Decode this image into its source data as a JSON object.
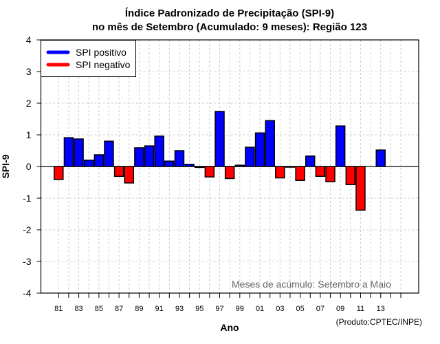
{
  "chart_data": {
    "type": "bar",
    "title": [
      "Índice Padronizado de Precipitação (SPI-9)",
      "no mês de Setembro (Acumulado: 9 meses): Região 123"
    ],
    "xlabel": "Ano",
    "ylabel": "SPI-9",
    "ylim": [
      -4,
      4
    ],
    "yticks": [
      "4",
      "3",
      "2",
      "1",
      "0",
      "-1",
      "-2",
      "-3",
      "-4"
    ],
    "xlim": [
      1981,
      2015
    ],
    "xtick_labels": [
      "81",
      "83",
      "85",
      "87",
      "89",
      "91",
      "93",
      "95",
      "97",
      "99",
      "01",
      "03",
      "05",
      "07",
      "09",
      "11",
      "13"
    ],
    "grid": true,
    "legend": {
      "position": "top-left",
      "entries": [
        {
          "label": "SPI positivo",
          "color": "#0000ff"
        },
        {
          "label": "SPI negativo",
          "color": "#ff0000"
        }
      ]
    },
    "colors": {
      "positive": "#0000ff",
      "negative": "#ff0000",
      "grid": "#cccccc"
    },
    "years": [
      1981,
      1982,
      1983,
      1984,
      1985,
      1986,
      1987,
      1988,
      1989,
      1990,
      1991,
      1992,
      1993,
      1994,
      1995,
      1996,
      1997,
      1998,
      1999,
      2000,
      2001,
      2002,
      2003,
      2004,
      2005,
      2006,
      2007,
      2008,
      2009,
      2010,
      2011,
      2012,
      2013
    ],
    "values": [
      -0.41,
      0.91,
      0.87,
      0.2,
      0.37,
      0.8,
      -0.31,
      -0.52,
      0.59,
      0.65,
      0.96,
      0.17,
      0.5,
      0.07,
      -0.03,
      -0.33,
      1.74,
      -0.38,
      0.04,
      0.61,
      1.06,
      1.45,
      -0.36,
      -0.02,
      -0.44,
      0.33,
      -0.31,
      -0.48,
      1.28,
      -0.57,
      -1.38,
      null,
      0.52
    ],
    "annotation": "Meses de acúmulo: Setembro a Maio",
    "credit": "(Produto:CPTEC/INPE)"
  }
}
